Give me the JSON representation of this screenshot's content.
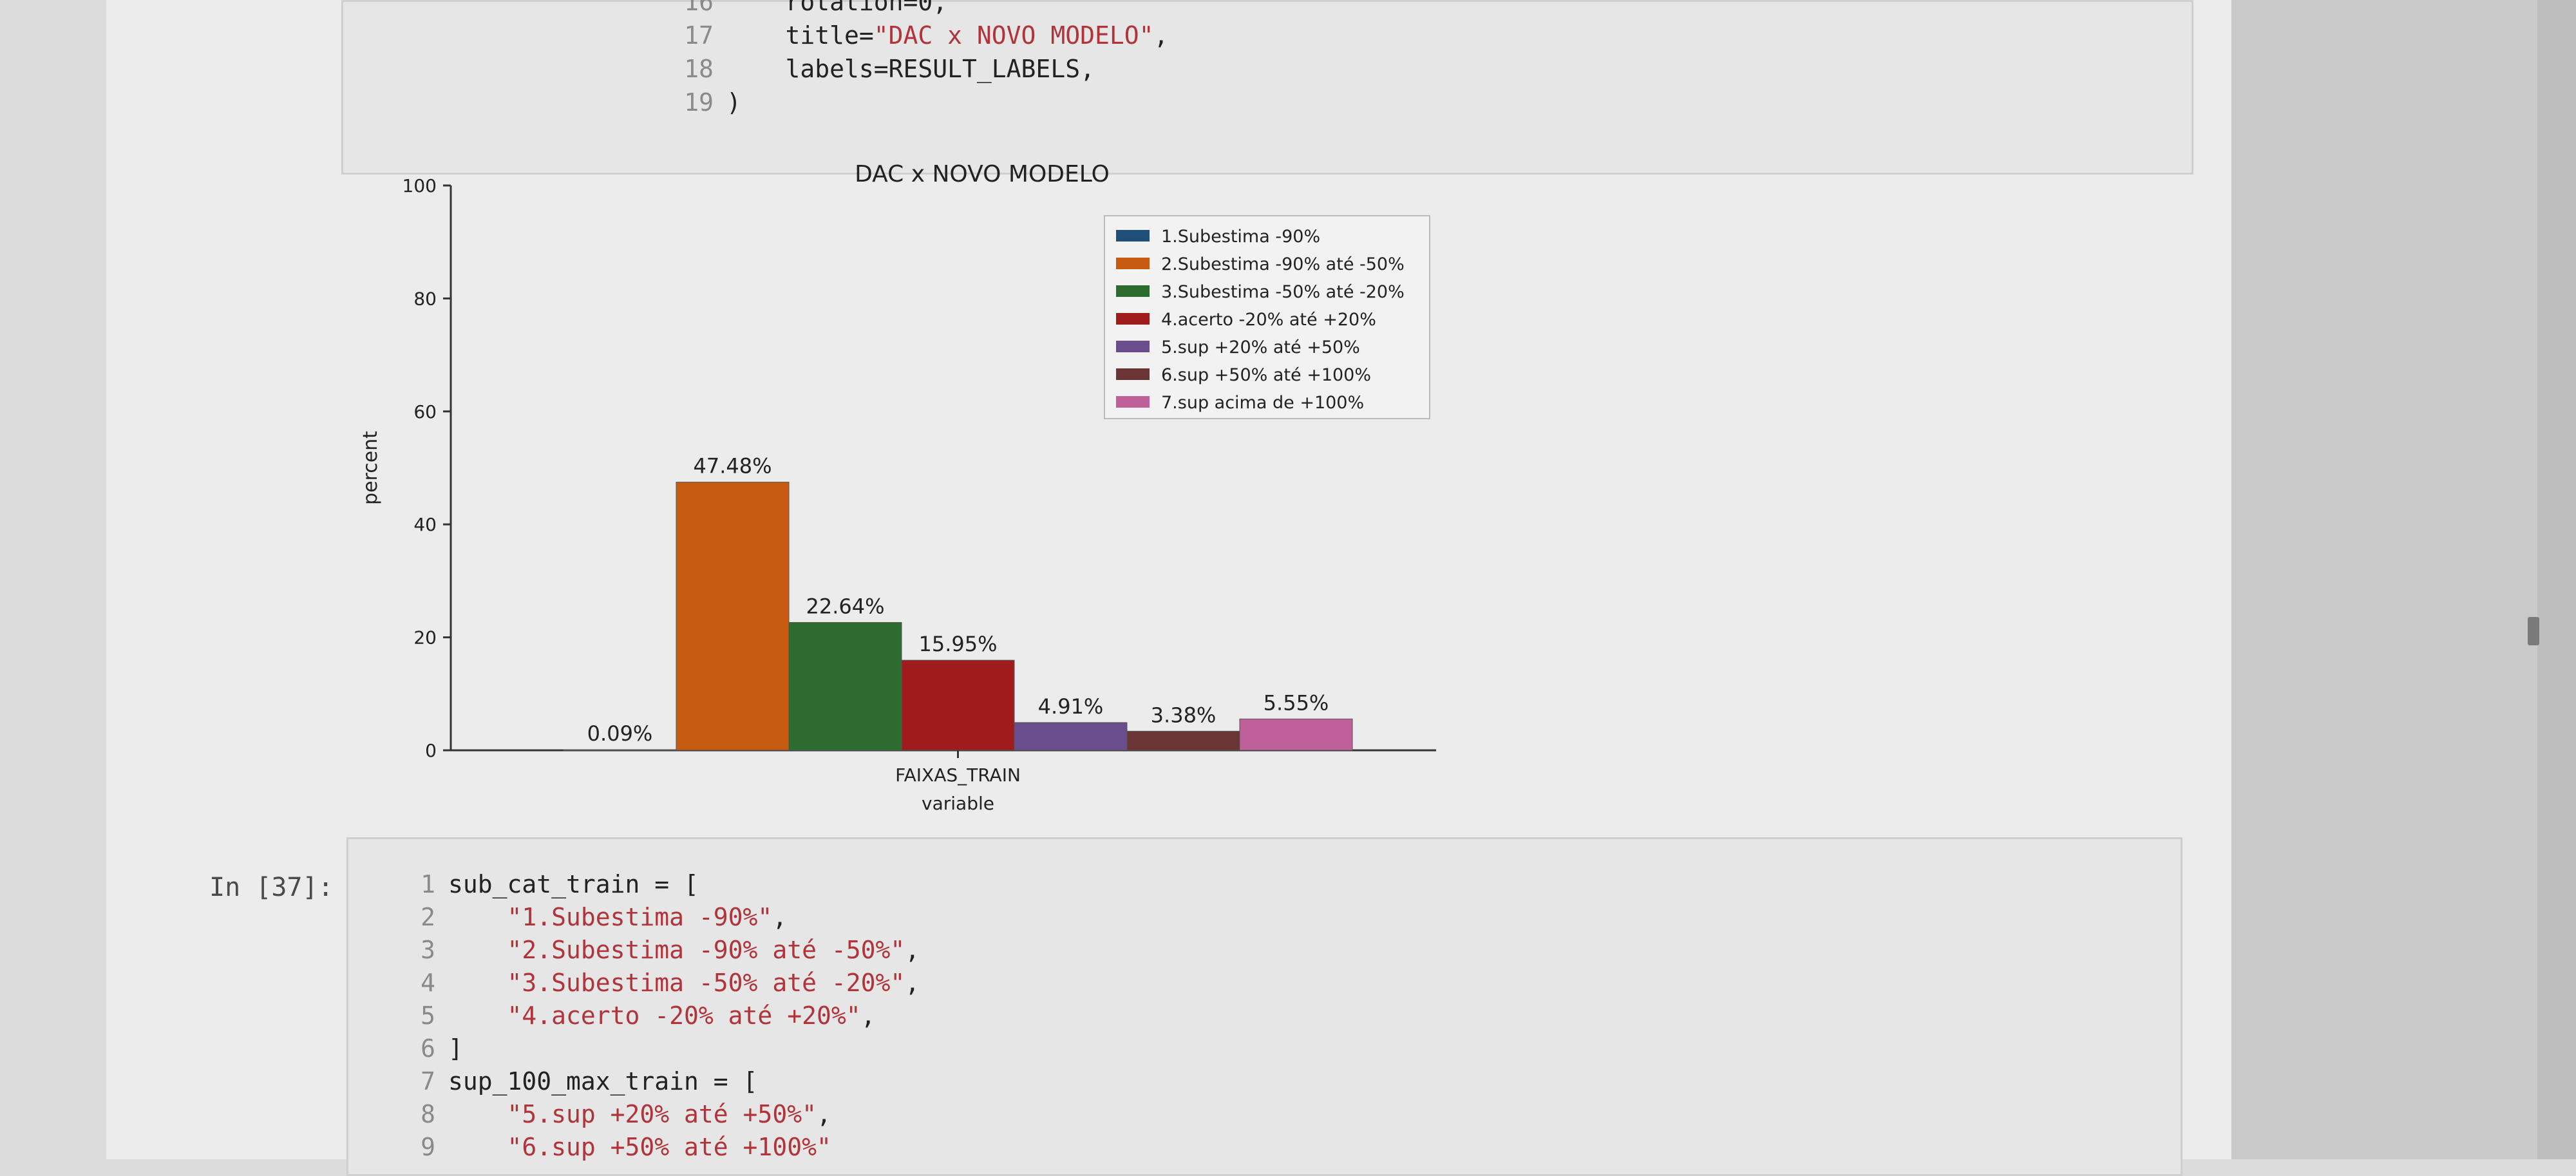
{
  "top_cell": {
    "lines": [
      {
        "num": "16",
        "text": "    rotation=0,"
      },
      {
        "num": "17",
        "code": "    title=",
        "str": "\"DAC x NOVO MODELO\"",
        "after": ","
      },
      {
        "num": "18",
        "text": "    labels=RESULT_LABELS,"
      },
      {
        "num": "19",
        "text": ")"
      }
    ]
  },
  "bottom_cell": {
    "prompt": "In [37]:",
    "lines": [
      {
        "num": "1",
        "text": "sub_cat_train = ["
      },
      {
        "num": "2",
        "str": "    \"1.Subestima -90%\"",
        "after": ","
      },
      {
        "num": "3",
        "str": "    \"2.Subestima -90% até -50%\"",
        "after": ","
      },
      {
        "num": "4",
        "str": "    \"3.Subestima -50% até -20%\"",
        "after": ","
      },
      {
        "num": "5",
        "str": "    \"4.acerto -20% até +20%\"",
        "after": ","
      },
      {
        "num": "6",
        "text": "]"
      },
      {
        "num": "7",
        "text": "sup_100_max_train = ["
      },
      {
        "num": "8",
        "str": "    \"5.sup +20% até +50%\"",
        "after": ","
      },
      {
        "num": "9",
        "str": "    \"6.sup +50% até +100%\"",
        "after": ""
      }
    ]
  },
  "chart_data": {
    "type": "bar",
    "title": "DAC x NOVO MODELO",
    "ylabel": "percent",
    "xlabel": "variable",
    "categories": [
      "FAIXAS_TRAIN"
    ],
    "ylim": [
      0,
      100
    ],
    "yticks": [
      0,
      20,
      40,
      60,
      80,
      100
    ],
    "legend_position": "top-right",
    "series": [
      {
        "name": "1.Subestima -90%",
        "value": 0.09,
        "label": "0.09%",
        "color": "#1f4e79"
      },
      {
        "name": "2.Subestima -90% até -50%",
        "value": 47.48,
        "label": "47.48%",
        "color": "#c65a11"
      },
      {
        "name": "3.Subestima -50% até -20%",
        "value": 22.64,
        "label": "22.64%",
        "color": "#2e6b2e"
      },
      {
        "name": "4.acerto -20% até +20%",
        "value": 15.95,
        "label": "15.95%",
        "color": "#a01c1c"
      },
      {
        "name": "5.sup +20% até +50%",
        "value": 4.91,
        "label": "4.91%",
        "color": "#6a4d8c"
      },
      {
        "name": "6.sup +50% até +100%",
        "value": 3.38,
        "label": "3.38%",
        "color": "#6b3535"
      },
      {
        "name": "7.sup acima de +100%",
        "value": 5.55,
        "label": "5.55%",
        "color": "#c0609a"
      }
    ]
  }
}
